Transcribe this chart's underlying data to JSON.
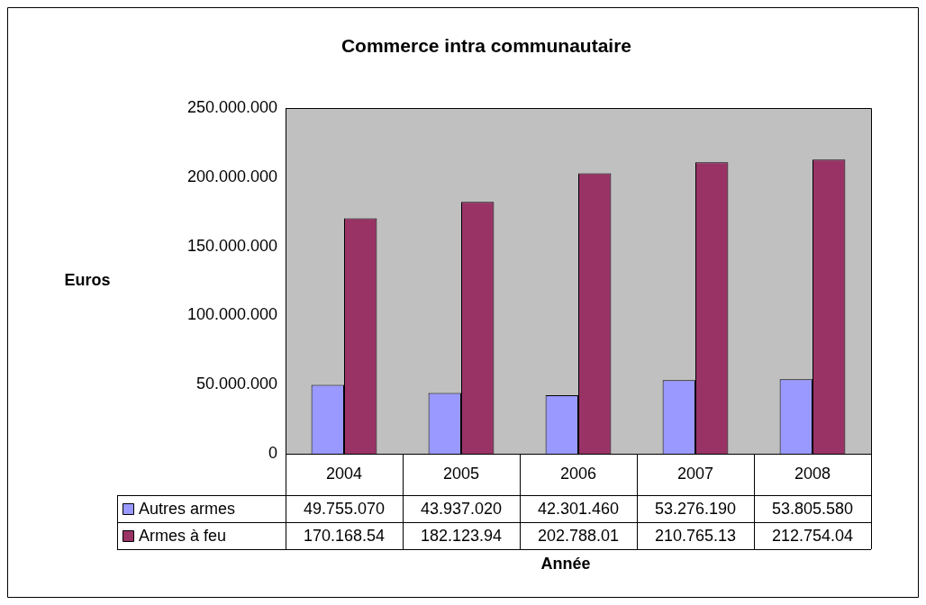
{
  "chart_data": {
    "type": "bar",
    "title": "Commerce intra communautaire",
    "xlabel": "Année",
    "ylabel": "Euros",
    "categories": [
      "2004",
      "2005",
      "2006",
      "2007",
      "2008"
    ],
    "series": [
      {
        "name": "Autres armes",
        "color": "#9999ff",
        "values": [
          49755070,
          43937020,
          42301460,
          53276190,
          53805580
        ],
        "value_labels": [
          "49.755.070",
          "43.937.020",
          "42.301.460",
          "53.276.190",
          "53.805.580"
        ]
      },
      {
        "name": "Armes à feu",
        "color": "#993366",
        "values": [
          170168540,
          182123940,
          202788010,
          210765130,
          212754040
        ],
        "value_labels": [
          "170.168.54",
          "182.123.94",
          "202.788.01",
          "210.765.13",
          "212.754.04"
        ]
      }
    ],
    "ylim": [
      0,
      250000000
    ],
    "yticks": [
      {
        "value": 0,
        "label": "0"
      },
      {
        "value": 50000000,
        "label": "50.000.000"
      },
      {
        "value": 100000000,
        "label": "100.000.000"
      },
      {
        "value": 150000000,
        "label": "150.000.000"
      },
      {
        "value": 200000000,
        "label": "200.000.000"
      },
      {
        "value": 250000000,
        "label": "250.000.000"
      }
    ],
    "grid": false,
    "legend": "bottom"
  }
}
